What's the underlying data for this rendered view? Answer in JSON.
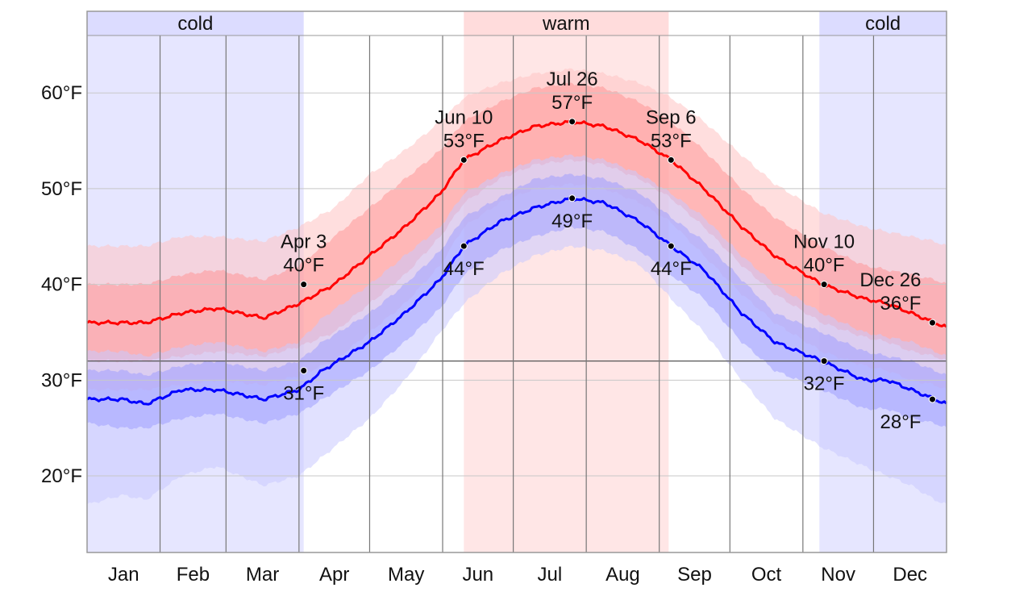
{
  "chart_data": {
    "type": "line",
    "units": "°F",
    "ylim": [
      12,
      66
    ],
    "yticks": [
      20,
      30,
      40,
      50,
      60
    ],
    "ytick_labels": [
      "20°F",
      "30°F",
      "40°F",
      "50°F",
      "60°F"
    ],
    "months": [
      "Jan",
      "Feb",
      "Mar",
      "Apr",
      "May",
      "Jun",
      "Jul",
      "Aug",
      "Sep",
      "Oct",
      "Nov",
      "Dec"
    ],
    "seasons": [
      {
        "name": "cold",
        "start_day": 0,
        "end_day": 92,
        "color": "#dcdcff"
      },
      {
        "name": "warm",
        "start_day": 160,
        "end_day": 247,
        "color": "#ffdcdc"
      },
      {
        "name": "cold",
        "start_day": 311,
        "end_day": 365,
        "color": "#dcdcff"
      }
    ],
    "series": [
      {
        "name": "high",
        "color": "#ff0000",
        "band_colors": [
          "#ffc2c2",
          "#ff8f8f"
        ],
        "x": [
          0,
          15,
          25,
          40,
          55,
          75,
          90,
          105,
          120,
          135,
          150,
          160,
          175,
          190,
          206,
          220,
          235,
          248,
          262,
          278,
          292,
          312,
          330,
          340,
          350,
          360,
          365
        ],
        "values": [
          36,
          36,
          36,
          37,
          37.5,
          36.5,
          38,
          40,
          43,
          46,
          49.5,
          53,
          55,
          56.5,
          57,
          56.5,
          55,
          53,
          50,
          46,
          43,
          40,
          38.5,
          38,
          37,
          36,
          35.5
        ],
        "p25": [
          32,
          32,
          32,
          32.5,
          33,
          32.5,
          33.5,
          35,
          38,
          41,
          45,
          48.5,
          51,
          52.5,
          53,
          52.5,
          51,
          49,
          46,
          42,
          39,
          36,
          34.5,
          34,
          33,
          32.5,
          32
        ],
        "p75": [
          40,
          40,
          40,
          41,
          41.5,
          40.5,
          42,
          45,
          48,
          51,
          54,
          57,
          59,
          60.5,
          61,
          60.5,
          59,
          57,
          54,
          50,
          47,
          44,
          42,
          41.5,
          41,
          40.5,
          40
        ],
        "p10": [
          29,
          29,
          29,
          29.5,
          30,
          29.5,
          30.5,
          32,
          35,
          38,
          42,
          46,
          48.5,
          50,
          50.5,
          50,
          48.5,
          46.5,
          43,
          39,
          36,
          33,
          31.5,
          31,
          30,
          29.5,
          29
        ],
        "p90": [
          44,
          44,
          44,
          45,
          45,
          44.5,
          46,
          48,
          51.5,
          54,
          57,
          59.5,
          61,
          62,
          62.5,
          62,
          61,
          59.5,
          57,
          53.5,
          50.5,
          47.5,
          46,
          45.5,
          45,
          44.5,
          44
        ]
      },
      {
        "name": "low",
        "color": "#0000ff",
        "band_colors": [
          "#c8c8ff",
          "#9a9aff"
        ],
        "x": [
          0,
          15,
          25,
          40,
          55,
          75,
          90,
          100,
          120,
          135,
          150,
          160,
          175,
          190,
          206,
          220,
          235,
          248,
          262,
          278,
          292,
          312,
          330,
          340,
          350,
          360,
          365
        ],
        "values": [
          28,
          28,
          27.5,
          29,
          29,
          28,
          29,
          31,
          34,
          37,
          40.5,
          44,
          46.5,
          48,
          49,
          48.5,
          46.5,
          44,
          41.5,
          37,
          34,
          32,
          30,
          30,
          29,
          28,
          27.5
        ],
        "p25": [
          25.5,
          25,
          25,
          26,
          26.5,
          25.5,
          26.5,
          28,
          31,
          34,
          37.5,
          41,
          43.5,
          45,
          46,
          45.5,
          43.5,
          41,
          38.5,
          34,
          31,
          29,
          27,
          27,
          26,
          25.5,
          25
        ],
        "p75": [
          31,
          31,
          30.5,
          31.5,
          32,
          31,
          32,
          34,
          37,
          40,
          43.5,
          47,
          49,
          51,
          51.5,
          51,
          49.5,
          47,
          44.5,
          40.5,
          37,
          35,
          33,
          32.5,
          32,
          31,
          30.5
        ],
        "p10": [
          17,
          18,
          17.5,
          20,
          21,
          19,
          20,
          22,
          26,
          30,
          35,
          38,
          41,
          43,
          44,
          43.5,
          42,
          38.5,
          35,
          30,
          26,
          23,
          21,
          20,
          19,
          17.5,
          17
        ],
        "p90": [
          33,
          33,
          32.5,
          33.5,
          34,
          33,
          34,
          36.5,
          40,
          43,
          46,
          49.5,
          51.5,
          53,
          53.5,
          53,
          51.5,
          49.5,
          47,
          43,
          40,
          37,
          35,
          34.5,
          34,
          33,
          32.5
        ]
      }
    ],
    "annotations": [
      {
        "series": "high",
        "day": 92,
        "value": 40,
        "label": "40°F",
        "date": "Apr 3"
      },
      {
        "series": "high",
        "day": 160,
        "value": 53,
        "label": "53°F",
        "date": "Jun 10"
      },
      {
        "series": "high",
        "day": 206,
        "value": 57,
        "label": "57°F",
        "date": "Jul 26"
      },
      {
        "series": "high",
        "day": 248,
        "value": 53,
        "label": "53°F",
        "date": "Sep 6"
      },
      {
        "series": "high",
        "day": 313,
        "value": 40,
        "label": "40°F",
        "date": "Nov 10"
      },
      {
        "series": "high",
        "day": 359,
        "value": 36,
        "label": "36°F",
        "date": "Dec 26"
      },
      {
        "series": "low",
        "day": 92,
        "value": 31,
        "label": "31°F"
      },
      {
        "series": "low",
        "day": 160,
        "value": 44,
        "label": "44°F"
      },
      {
        "series": "low",
        "day": 206,
        "value": 49,
        "label": "49°F"
      },
      {
        "series": "low",
        "day": 248,
        "value": 44,
        "label": "44°F"
      },
      {
        "series": "low",
        "day": 313,
        "value": 32,
        "label": "32°F"
      },
      {
        "series": "low",
        "day": 359,
        "value": 28,
        "label": "28°F"
      }
    ]
  }
}
